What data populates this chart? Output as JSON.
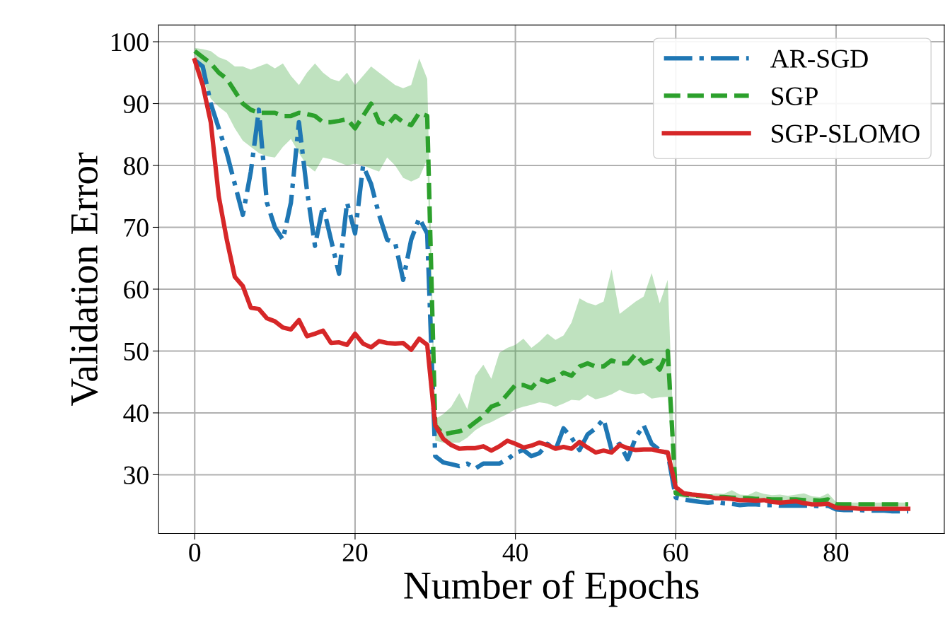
{
  "chart_data": {
    "type": "line",
    "xlabel": "Number of Epochs",
    "ylabel": "Validation Error",
    "x": [
      0,
      1,
      2,
      3,
      4,
      5,
      6,
      7,
      8,
      9,
      10,
      11,
      12,
      13,
      14,
      15,
      16,
      17,
      18,
      19,
      20,
      21,
      22,
      23,
      24,
      25,
      26,
      27,
      28,
      29,
      30,
      31,
      32,
      33,
      34,
      35,
      36,
      37,
      38,
      39,
      40,
      41,
      42,
      43,
      44,
      45,
      46,
      47,
      48,
      49,
      50,
      51,
      52,
      53,
      54,
      55,
      56,
      57,
      58,
      59,
      60,
      61,
      62,
      63,
      64,
      65,
      66,
      67,
      68,
      69,
      70,
      71,
      72,
      73,
      74,
      75,
      76,
      77,
      78,
      79,
      80,
      81,
      82,
      83,
      84,
      85,
      86,
      87,
      88,
      89
    ],
    "series": [
      {
        "name": "AR-SGD",
        "color": "#1f77b4",
        "line_style": "dashdot",
        "values": [
          97,
          96,
          90,
          86,
          82,
          77,
          72,
          79,
          89,
          74,
          70,
          68,
          74,
          87,
          76,
          67,
          73.5,
          68,
          62.5,
          74,
          69,
          80,
          77,
          72,
          68,
          67.5,
          61.5,
          68,
          71.5,
          69,
          33,
          32,
          31.7,
          31.4,
          31.8,
          31,
          31.8,
          31.8,
          31.8,
          32.5,
          33.5,
          34,
          33,
          33.5,
          35,
          34,
          37.5,
          36,
          34,
          36.5,
          37.5,
          39,
          34,
          35,
          32.5,
          36,
          38,
          35,
          34,
          33.5,
          26.3,
          26,
          25.8,
          25.6,
          25.5,
          25.6,
          25.4,
          25.3,
          25.1,
          25.2,
          25.2,
          25.1,
          25.1,
          25,
          25,
          25,
          25,
          25,
          24.9,
          25,
          24.4,
          24.3,
          24.3,
          24.3,
          24.2,
          24.2,
          24.2,
          24.1,
          24.1,
          24.1
        ]
      },
      {
        "name": "SGP",
        "color": "#2ca02c",
        "line_style": "dashed",
        "values": [
          98.5,
          97.5,
          96.5,
          95,
          94,
          92,
          90,
          89,
          88.5,
          88.5,
          88.5,
          88,
          88,
          88.5,
          88.3,
          88,
          87,
          87,
          87.2,
          87.5,
          86,
          88,
          90,
          87,
          86.5,
          88,
          87,
          86.5,
          88.5,
          88,
          38,
          36.5,
          36.8,
          37,
          37.5,
          38.5,
          39.5,
          41,
          41.5,
          43,
          44.5,
          44.5,
          44,
          45.5,
          45,
          45.5,
          46.5,
          46,
          47.5,
          48,
          47.5,
          47.5,
          48.5,
          48,
          48,
          49.5,
          48,
          48.5,
          47,
          50,
          27,
          26.8,
          26.7,
          26.6,
          26.5,
          26.4,
          26.4,
          26.3,
          26.2,
          26.2,
          26.1,
          26.1,
          26,
          26,
          26,
          26,
          25.9,
          25.9,
          25.8,
          26,
          25.2,
          25.2,
          25.2,
          25.2,
          25.2,
          25.2,
          25.2,
          25.2,
          25.2,
          25.2
        ],
        "lower": [
          98,
          94,
          90.8,
          89.5,
          88.5,
          86,
          84,
          83,
          82,
          81.5,
          81.3,
          83,
          84.3,
          82,
          80,
          79,
          81.3,
          81,
          80.5,
          80,
          80.3,
          80,
          79.5,
          79,
          81.3,
          80,
          78,
          77.4,
          78,
          81,
          35.5,
          35.2,
          35.2,
          35.2,
          36,
          37.2,
          38,
          38.5,
          39.2,
          39.8,
          40.6,
          41,
          41.3,
          41.7,
          41.5,
          41,
          41.5,
          42.1,
          42,
          42.9,
          42.2,
          42.5,
          43,
          43.7,
          43.2,
          43,
          43.2,
          42.3,
          42.5,
          42.6,
          26.5,
          26.3,
          26.3,
          26.2,
          26.1,
          26,
          26,
          25.9,
          25.8,
          25.8,
          25.8,
          25.7,
          25.7,
          25.6,
          25.6,
          25.5,
          25.5,
          25.4,
          25.4,
          25.4,
          24.9,
          24.9,
          24.9,
          24.9,
          24.9,
          24.9,
          24.9,
          24.9,
          24.9,
          24.9
        ],
        "upper": [
          99,
          98.8,
          98.5,
          97.5,
          97,
          96,
          96,
          95.5,
          96,
          96.5,
          95.7,
          96.5,
          94.5,
          93,
          95,
          96.5,
          95,
          94,
          93.6,
          95,
          93,
          94.5,
          96,
          95,
          94,
          93,
          92.5,
          93,
          97.3,
          94,
          39,
          39.8,
          41,
          43.2,
          40.6,
          46,
          47.8,
          45.5,
          49.7,
          50.5,
          51,
          52,
          50.5,
          51.5,
          52.8,
          51.8,
          52.5,
          54.6,
          58.5,
          57.8,
          57.4,
          58,
          63.2,
          56,
          57,
          58,
          58.8,
          62.6,
          57.7,
          61.5,
          27.5,
          27.2,
          27.1,
          27,
          26.8,
          27,
          26.9,
          27.5,
          26.8,
          26.7,
          27.3,
          26.9,
          26.7,
          26.8,
          26.6,
          26.8,
          27,
          26.5,
          26.4,
          27,
          25.6,
          25.5,
          25.5,
          25.5,
          25.5,
          25.5,
          25.5,
          25.5,
          25.5,
          25.5
        ]
      },
      {
        "name": "SGP-SLOMO",
        "color": "#d62728",
        "line_style": "solid",
        "values": [
          97,
          93,
          87,
          75,
          68,
          62,
          60.5,
          57,
          56.8,
          55.3,
          54.8,
          53.8,
          53.5,
          55,
          52.4,
          52.8,
          53.3,
          51.3,
          51.4,
          51,
          52.8,
          51.2,
          50.6,
          51.6,
          51.3,
          51.2,
          51.3,
          50.2,
          52,
          51,
          38,
          35.8,
          34.8,
          34.2,
          34.3,
          34.3,
          34.6,
          33.9,
          34.6,
          35.5,
          35,
          34.4,
          34.7,
          35.2,
          34.8,
          34.2,
          34.5,
          34.2,
          35.3,
          34.4,
          33.6,
          33.9,
          33.6,
          34.8,
          34.3,
          34,
          34.1,
          34.1,
          33.8,
          33.6,
          28,
          27,
          26.8,
          26.7,
          26.5,
          26.2,
          26.2,
          26.1,
          25.9,
          25.9,
          25.8,
          25.9,
          25.6,
          25.5,
          25.6,
          25.7,
          25.4,
          25.2,
          25.2,
          25.3,
          24.7,
          24.6,
          24.6,
          24.5,
          24.5,
          24.5,
          24.5,
          24.5,
          24.5,
          24.5
        ]
      }
    ],
    "xlim": [
      -4.5,
      93.5
    ],
    "ylim": [
      20.5,
      102.7
    ],
    "xticks": [
      0,
      20,
      40,
      60,
      80
    ],
    "yticks": [
      30,
      40,
      50,
      60,
      70,
      80,
      90,
      100
    ],
    "grid": true,
    "legend": "top right"
  }
}
